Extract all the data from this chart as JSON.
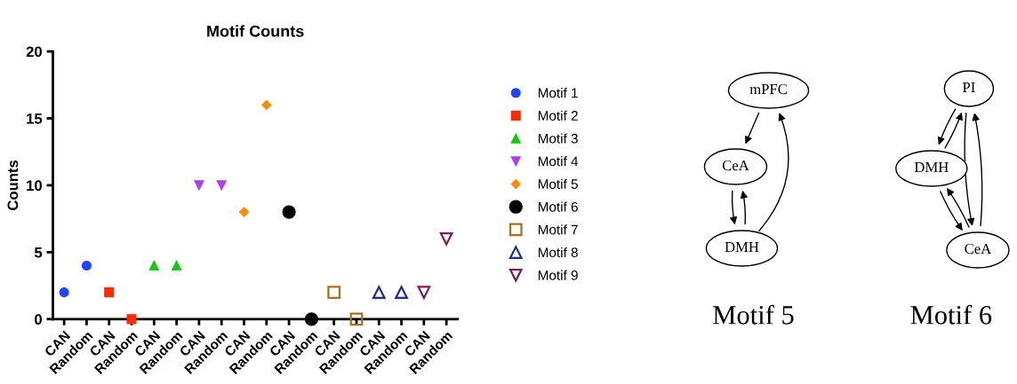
{
  "chart_data": [
    {
      "type": "scatter",
      "title": "Motif Counts",
      "ylabel": "Counts",
      "categories": [
        "CAN",
        "Random",
        "CAN",
        "Random",
        "CAN",
        "Random",
        "CAN",
        "Random",
        "CAN",
        "Random",
        "CAN",
        "Random",
        "CAN",
        "Random",
        "CAN",
        "Random",
        "CAN",
        "Random"
      ],
      "ylim": [
        0,
        20
      ],
      "yticks": [
        0,
        5,
        10,
        15,
        20
      ],
      "grid": false,
      "legend": "right",
      "series": [
        {
          "name": "Motif 1",
          "color": "#1f45ff",
          "marker": "circle",
          "values": [
            2,
            4,
            null,
            null,
            null,
            null,
            null,
            null,
            null,
            null,
            null,
            null,
            null,
            null,
            null,
            null,
            null,
            null
          ]
        },
        {
          "name": "Motif 2",
          "color": "#ff2a00",
          "marker": "square",
          "values": [
            null,
            null,
            2,
            0,
            null,
            null,
            null,
            null,
            null,
            null,
            null,
            null,
            null,
            null,
            null,
            null,
            null,
            null
          ]
        },
        {
          "name": "Motif 3",
          "color": "#14c814",
          "marker": "triangle",
          "values": [
            null,
            null,
            null,
            null,
            4,
            4,
            null,
            null,
            null,
            null,
            null,
            null,
            null,
            null,
            null,
            null,
            null,
            null
          ]
        },
        {
          "name": "Motif 4",
          "color": "#b43cf0",
          "marker": "triangle-down",
          "values": [
            null,
            null,
            null,
            null,
            null,
            null,
            10,
            10,
            null,
            null,
            null,
            null,
            null,
            null,
            null,
            null,
            null,
            null
          ]
        },
        {
          "name": "Motif 5",
          "color": "#ff8c00",
          "marker": "diamond",
          "values": [
            null,
            null,
            null,
            null,
            null,
            null,
            null,
            null,
            8,
            16,
            null,
            null,
            null,
            null,
            null,
            null,
            null,
            null
          ]
        },
        {
          "name": "Motif 6",
          "color": "#000000",
          "marker": "circle-large",
          "values": [
            null,
            null,
            null,
            null,
            null,
            null,
            null,
            null,
            null,
            null,
            8,
            0,
            null,
            null,
            null,
            null,
            null,
            null
          ]
        },
        {
          "name": "Motif 7",
          "color": "#a8701e",
          "marker": "square-open",
          "values": [
            null,
            null,
            null,
            null,
            null,
            null,
            null,
            null,
            null,
            null,
            null,
            null,
            2,
            0,
            null,
            null,
            null,
            null
          ]
        },
        {
          "name": "Motif 8",
          "color": "#1a2f9c",
          "marker": "triangle-open",
          "values": [
            null,
            null,
            null,
            null,
            null,
            null,
            null,
            null,
            null,
            null,
            null,
            null,
            null,
            null,
            2,
            2,
            null,
            null
          ]
        },
        {
          "name": "Motif 9",
          "color": "#7a1f5a",
          "marker": "triangle-down-open",
          "values": [
            null,
            null,
            null,
            null,
            null,
            null,
            null,
            null,
            null,
            null,
            null,
            null,
            null,
            null,
            null,
            null,
            2,
            6
          ]
        }
      ]
    },
    {
      "type": "other",
      "annotations": [
        "mPFC",
        "CeA",
        "DMH",
        "Motif 5",
        "PI",
        "DMH",
        "CeA",
        "Motif 6"
      ]
    }
  ]
}
